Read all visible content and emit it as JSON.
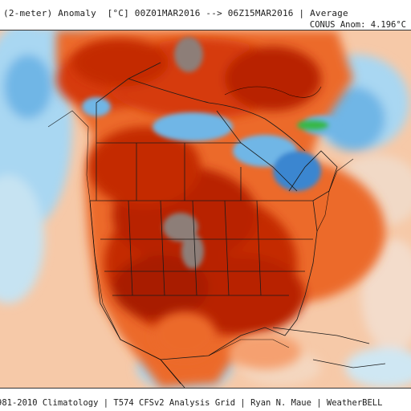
{
  "header": {
    "title": "(2-meter) Anomaly  [°C] 00Z01MAR2016 --> 06Z15MAR2016 | Average",
    "anomaly": "CONUS Anom: 4.196°C"
  },
  "footer": {
    "credits": "981-2010 Climatology | T574 CFSv2 Analysis Grid | Ryan N. Maue | WeatherBELL"
  },
  "colors": {
    "ocean_base": "#f6c9a8",
    "pale_blue": "#a9d7f2",
    "light_blue": "#6fb6e6",
    "mid_blue": "#3a86d0",
    "deep_red": "#a81e00",
    "red": "#d63a0c",
    "orange_red": "#ec6a2a",
    "orange": "#f5a070",
    "light_orange": "#f8c6a0",
    "gray_brown": "#8d7e78",
    "green": "#38b848"
  },
  "icons": {
    "map": "north-america-temperature-anomaly-map"
  }
}
